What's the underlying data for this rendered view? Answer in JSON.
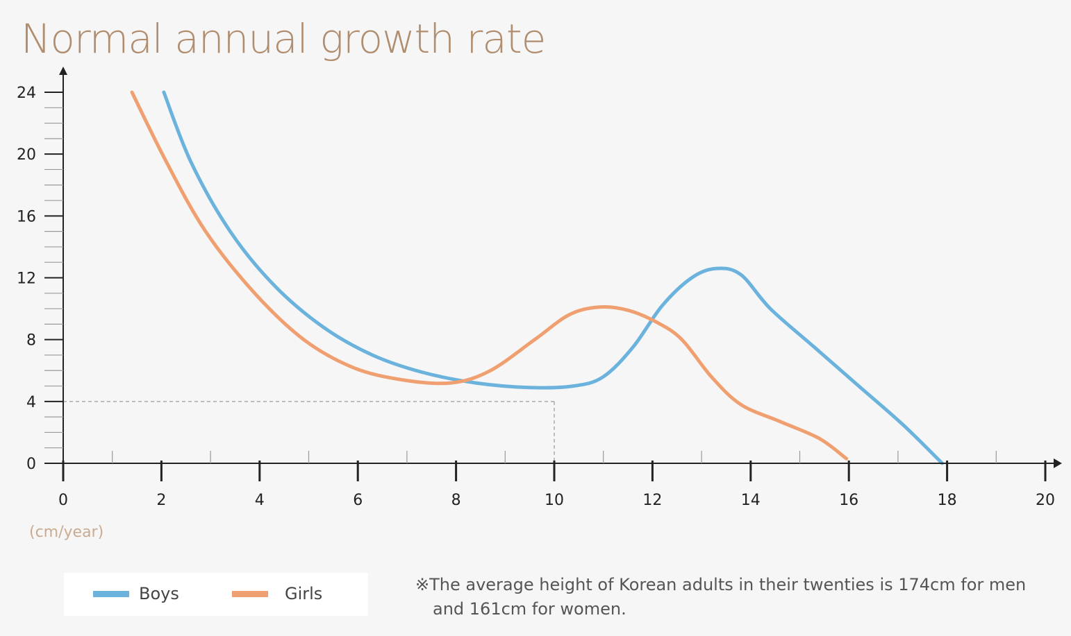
{
  "colors": {
    "boys": "#6bb3dd",
    "girls": "#f0a070",
    "axis": "#222222",
    "title": "#b08d6e",
    "guide": "#aaaaaa"
  },
  "chart_data": {
    "type": "line",
    "title": "Normal annual growth rate",
    "ylabel": "(cm/year)",
    "xlabel": "",
    "xlim": [
      0,
      20
    ],
    "ylim": [
      0,
      24
    ],
    "x_ticks": [
      0,
      2,
      4,
      6,
      8,
      10,
      12,
      14,
      16,
      18,
      20
    ],
    "y_ticks": [
      0,
      4,
      8,
      12,
      16,
      20,
      24
    ],
    "series": [
      {
        "name": "Boys",
        "color": "#6bb3dd",
        "points": [
          [
            2.05,
            24
          ],
          [
            2.6,
            19.5
          ],
          [
            3.4,
            15
          ],
          [
            4.3,
            11.5
          ],
          [
            5.3,
            8.8
          ],
          [
            6.3,
            7
          ],
          [
            7.3,
            5.9
          ],
          [
            8.4,
            5.2
          ],
          [
            9.5,
            4.9
          ],
          [
            10.4,
            5.0
          ],
          [
            11.0,
            5.6
          ],
          [
            11.6,
            7.5
          ],
          [
            12.2,
            10.2
          ],
          [
            12.8,
            12.0
          ],
          [
            13.3,
            12.6
          ],
          [
            13.8,
            12.2
          ],
          [
            14.4,
            10.0
          ],
          [
            15.3,
            7.5
          ],
          [
            16.2,
            5.0
          ],
          [
            17.1,
            2.5
          ],
          [
            17.9,
            0
          ]
        ]
      },
      {
        "name": "Girls",
        "color": "#f0a070",
        "points": [
          [
            1.4,
            24
          ],
          [
            2.1,
            19.5
          ],
          [
            2.9,
            15
          ],
          [
            3.9,
            11
          ],
          [
            4.9,
            8
          ],
          [
            5.9,
            6.2
          ],
          [
            6.9,
            5.4
          ],
          [
            7.9,
            5.2
          ],
          [
            8.7,
            6.0
          ],
          [
            9.6,
            8.0
          ],
          [
            10.3,
            9.6
          ],
          [
            10.9,
            10.1
          ],
          [
            11.5,
            9.9
          ],
          [
            12.1,
            9.1
          ],
          [
            12.6,
            8.0
          ],
          [
            13.2,
            5.6
          ],
          [
            13.8,
            3.8
          ],
          [
            14.6,
            2.7
          ],
          [
            15.4,
            1.6
          ],
          [
            15.95,
            0.3
          ]
        ]
      }
    ],
    "guide": {
      "x": 10,
      "y": 4
    }
  },
  "legend": {
    "boys": "Boys",
    "girls": "Girls"
  },
  "note": {
    "line1": "※The average height of Korean adults in their twenties is 174cm for men",
    "line2": "and 161cm for women."
  }
}
